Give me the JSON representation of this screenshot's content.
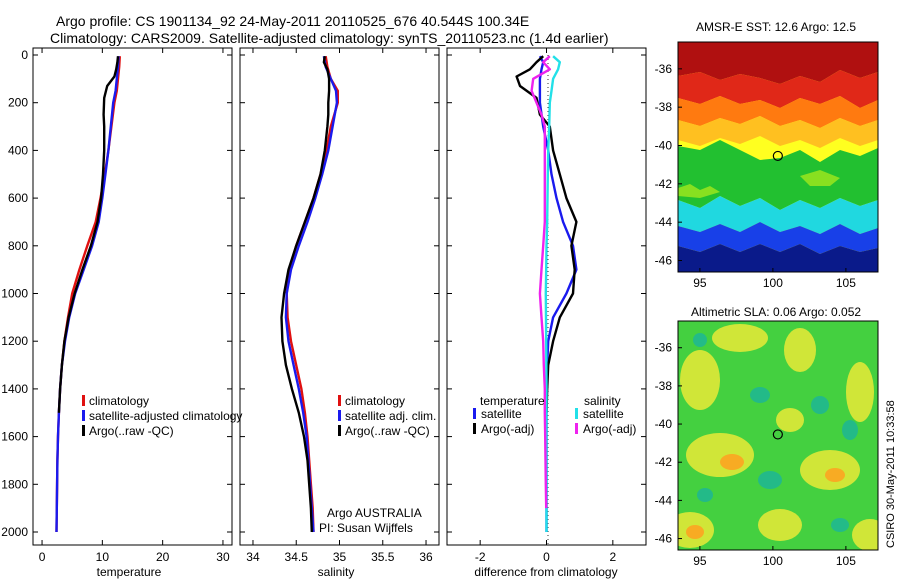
{
  "header": {
    "line1": "Argo profile: CS 1901134_92 24-May-2011 20110525_676 40.544S 100.34E",
    "line2": "Climatology: CARS2009. Satellite-adjusted climatology: synTS_20110523.nc (1.4d earlier)"
  },
  "stamp": "CSIRO 30-May-2011 10:33:58",
  "colors": {
    "climatology": "#e01010",
    "satellite": "#1a1aee",
    "argo": "#000000",
    "cyan": "#22e0e8",
    "magenta": "#ee22ee"
  },
  "chart_data": [
    {
      "id": "temperature",
      "type": "line",
      "xlabel": "temperature",
      "ylim": [
        2050,
        0
      ],
      "xlim": [
        -1.5,
        31.5
      ],
      "xticks": [
        "0",
        "10",
        "20",
        "30"
      ],
      "yticks": [
        "0",
        "200",
        "400",
        "600",
        "800",
        "1000",
        "1200",
        "1400",
        "1600",
        "1800",
        "2000"
      ],
      "series": [
        {
          "name": "climatology",
          "color": "#e01010",
          "depth": [
            5,
            50,
            100,
            150,
            200,
            300,
            400,
            500,
            600,
            700,
            800,
            900,
            1000,
            1100,
            1200,
            1300,
            1400,
            1500,
            1600,
            1700,
            1800,
            1900,
            2000
          ],
          "values": [
            12.9,
            12.8,
            12.6,
            12.4,
            12.0,
            11.5,
            11.0,
            10.4,
            9.7,
            8.9,
            7.5,
            6.2,
            5.0,
            4.3,
            3.7,
            3.3,
            3.0,
            2.8,
            2.65,
            2.55,
            2.5,
            2.45,
            2.4
          ]
        },
        {
          "name": "satellite-adjusted climatology",
          "color": "#1a1aee",
          "depth": [
            5,
            50,
            100,
            150,
            200,
            300,
            400,
            500,
            600,
            700,
            800,
            900,
            1000,
            1100,
            1200,
            1300,
            1400,
            1500,
            1600,
            1700,
            1800,
            1900,
            2000
          ],
          "values": [
            12.7,
            12.6,
            12.4,
            12.2,
            11.8,
            11.4,
            11.0,
            10.5,
            10.0,
            9.4,
            8.3,
            6.9,
            5.5,
            4.5,
            3.8,
            3.3,
            3.0,
            2.8,
            2.65,
            2.55,
            2.5,
            2.45,
            2.4
          ]
        },
        {
          "name": "Argo(..raw -QC)",
          "color": "#000000",
          "depth": [
            5,
            30,
            60,
            90,
            130,
            180,
            250,
            300,
            400,
            500,
            600,
            700,
            800,
            900,
            1000,
            1100,
            1200,
            1300,
            1400,
            1500
          ],
          "values": [
            12.6,
            12.5,
            12.3,
            12.0,
            10.8,
            10.3,
            10.2,
            10.3,
            10.3,
            10.1,
            9.8,
            9.2,
            8.1,
            6.7,
            5.4,
            4.4,
            3.7,
            3.3,
            3.0,
            2.8
          ]
        }
      ],
      "legend": [
        "climatology",
        "satellite-adjusted climatology",
        "Argo(..raw -QC)"
      ]
    },
    {
      "id": "salinity",
      "type": "line",
      "xlabel": "salinity",
      "ylim": [
        2050,
        0
      ],
      "xlim": [
        33.85,
        36.15
      ],
      "xticks": [
        "34",
        "34.5",
        "35",
        "35.5",
        "36"
      ],
      "series": [
        {
          "name": "climatology",
          "color": "#e01010",
          "depth": [
            5,
            50,
            100,
            150,
            200,
            300,
            400,
            500,
            600,
            700,
            800,
            900,
            1000,
            1100,
            1200,
            1300,
            1400,
            1500,
            1600,
            1700,
            1800,
            1900,
            2000
          ],
          "values": [
            34.84,
            34.86,
            34.9,
            34.98,
            34.98,
            34.9,
            34.85,
            34.78,
            34.7,
            34.6,
            34.5,
            34.42,
            34.39,
            34.4,
            34.44,
            34.5,
            34.56,
            34.6,
            34.63,
            34.65,
            34.67,
            34.69,
            34.7
          ]
        },
        {
          "name": "satellite adj. clim.",
          "color": "#1a1aee",
          "depth": [
            5,
            50,
            100,
            150,
            200,
            300,
            400,
            500,
            600,
            700,
            800,
            900,
            1000,
            1100,
            1200,
            1300,
            1400,
            1500,
            1600,
            1700,
            1800,
            1900,
            2000
          ],
          "values": [
            34.82,
            34.84,
            34.9,
            34.96,
            34.97,
            34.92,
            34.87,
            34.8,
            34.72,
            34.63,
            34.53,
            34.44,
            34.39,
            34.38,
            34.41,
            34.47,
            34.53,
            34.58,
            34.62,
            34.64,
            34.66,
            34.68,
            34.7
          ]
        },
        {
          "name": "Argo(..raw -QC)",
          "color": "#000000",
          "depth": [
            5,
            30,
            60,
            100,
            150,
            200,
            250,
            300,
            400,
            500,
            600,
            700,
            800,
            900,
            1000,
            1100,
            1200,
            1300,
            1400,
            1500,
            1600,
            1700,
            1800,
            1900,
            2000
          ],
          "values": [
            34.83,
            34.82,
            34.86,
            34.88,
            34.88,
            34.87,
            34.87,
            34.86,
            34.83,
            34.78,
            34.7,
            34.6,
            34.5,
            34.41,
            34.36,
            34.33,
            34.34,
            34.38,
            34.45,
            34.53,
            34.59,
            34.63,
            34.65,
            34.67,
            34.68
          ]
        }
      ],
      "legend": [
        "climatology",
        "satellite adj. clim.",
        "Argo(..raw -QC)"
      ],
      "annotation": [
        "Argo AUSTRALIA",
        "PI: Susan Wijffels"
      ]
    },
    {
      "id": "difference",
      "type": "line",
      "xlabel": "difference from climatology",
      "ylim": [
        2050,
        0
      ],
      "xlim": [
        -3.0,
        3.0
      ],
      "xticks": [
        "-2",
        "0",
        "2"
      ],
      "series": [
        {
          "name": "temperature satellite",
          "color": "#1a1aee",
          "depth": [
            5,
            30,
            60,
            100,
            150,
            200,
            300,
            400,
            500,
            600,
            700,
            800,
            900,
            1000,
            1100,
            1200,
            1300,
            1400,
            1500,
            1600,
            1800,
            2000
          ],
          "values": [
            -0.2,
            -0.1,
            -0.15,
            -0.2,
            -0.2,
            -0.2,
            -0.1,
            0.05,
            0.15,
            0.3,
            0.5,
            0.8,
            0.9,
            0.6,
            0.2,
            0.05,
            0.02,
            0,
            0,
            0,
            0,
            0
          ]
        },
        {
          "name": "temperature Argo(-adj)",
          "color": "#000000",
          "depth": [
            5,
            30,
            60,
            90,
            130,
            180,
            250,
            300,
            400,
            500,
            600,
            700,
            800,
            900,
            1000,
            1100,
            1200,
            1300,
            1400,
            1500
          ],
          "values": [
            -0.1,
            -0.3,
            -0.5,
            -0.9,
            -0.8,
            -0.3,
            -0.2,
            0.1,
            0.2,
            0.4,
            0.6,
            0.9,
            0.75,
            0.85,
            0.8,
            0.4,
            0.2,
            0.05,
            0.02,
            0
          ]
        },
        {
          "name": "salinity satellite",
          "color": "#22e0e8",
          "depth": [
            5,
            30,
            60,
            100,
            150,
            200,
            300,
            400,
            500,
            600,
            700,
            800,
            900,
            1000,
            1200,
            1400,
            1600,
            1800,
            2000
          ],
          "values": [
            0.2,
            0.4,
            0.35,
            0.2,
            0.15,
            0.1,
            0.08,
            0.05,
            0.04,
            0.03,
            0.02,
            0,
            -0.01,
            -0.02,
            -0.01,
            0,
            0,
            0,
            0
          ]
        },
        {
          "name": "salinity Argo(-adj)",
          "color": "#ee22ee",
          "depth": [
            5,
            30,
            60,
            100,
            150,
            200,
            250,
            300,
            400,
            500,
            600,
            700,
            800,
            900,
            1000,
            1100,
            1200,
            1300,
            1400,
            1500,
            1600,
            1700,
            1800,
            1900
          ],
          "values": [
            0.1,
            -0.1,
            0.1,
            -0.4,
            -0.45,
            -0.3,
            -0.15,
            -0.05,
            -0.05,
            -0.05,
            -0.05,
            -0.05,
            -0.1,
            -0.15,
            -0.2,
            -0.15,
            -0.1,
            -0.08,
            -0.05,
            -0.05,
            -0.04,
            -0.03,
            -0.02,
            -0.01
          ]
        }
      ],
      "legend_temp_header": "temperature",
      "legend_sal_header": "salinity",
      "legend_temp": [
        "satellite",
        "Argo(-adj)"
      ],
      "legend_sal": [
        "satellite",
        "Argo(-adj)"
      ]
    },
    {
      "id": "sst_map",
      "type": "heatmap",
      "title": "AMSR-E SST: 12.6  Argo: 12.5",
      "xlim": [
        93.5,
        107.2
      ],
      "ylim": [
        -46.6,
        -34.6
      ],
      "xticks": [
        "95",
        "100",
        "105"
      ],
      "yticks": [
        "-36",
        "-38",
        "-40",
        "-42",
        "-44",
        "-46"
      ],
      "marker": {
        "lon": 100.34,
        "lat": -40.544
      }
    },
    {
      "id": "sla_map",
      "type": "heatmap",
      "title": "Altimetric SLA: 0.06  Argo: 0.052",
      "xlim": [
        93.5,
        107.2
      ],
      "ylim": [
        -46.6,
        -34.6
      ],
      "xticks": [
        "95",
        "100",
        "105"
      ],
      "yticks": [
        "-36",
        "-38",
        "-40",
        "-42",
        "-44",
        "-46"
      ],
      "marker": {
        "lon": 100.34,
        "lat": -40.544
      }
    }
  ]
}
